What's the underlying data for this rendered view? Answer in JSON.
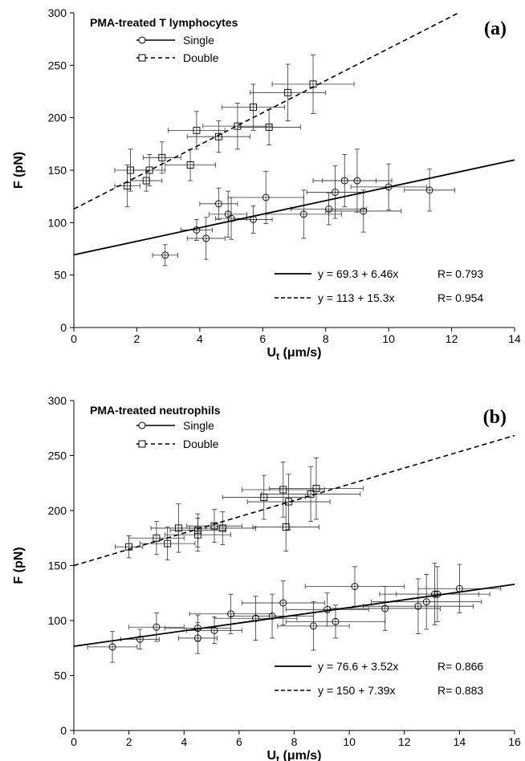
{
  "chart_data": [
    {
      "type": "scatter",
      "panel_label": "(a)",
      "title": "PMA-treated T lymphocytes",
      "xlabel": "U_t (μm/s)",
      "xlabel_main": "U",
      "xlabel_sub": "t",
      "xlabel_unit": " (μm/s)",
      "ylabel": "F (pN)",
      "xlim": [
        0,
        14
      ],
      "ylim": [
        0,
        300
      ],
      "xticks": [
        "0",
        "2",
        "4",
        "6",
        "8",
        "10",
        "12",
        "14"
      ],
      "yticks": [
        "0",
        "50",
        "100",
        "150",
        "200",
        "250",
        "300"
      ],
      "legend_position": "top-left",
      "grid": false,
      "series": [
        {
          "name": "Single",
          "marker": "circle",
          "line_style": "solid",
          "fit": {
            "intercept": 69.3,
            "slope": 6.46,
            "label": "y = 69.3 + 6.46x",
            "r_label": "R= 0.793"
          },
          "points": [
            {
              "x": 2.9,
              "y": 69,
              "xerr": 0.4,
              "yerr": 10
            },
            {
              "x": 3.9,
              "y": 93,
              "xerr": 0.5,
              "yerr": 10
            },
            {
              "x": 4.2,
              "y": 85,
              "xerr": 0.6,
              "yerr": 20
            },
            {
              "x": 4.6,
              "y": 118,
              "xerr": 0.6,
              "yerr": 15
            },
            {
              "x": 4.9,
              "y": 108,
              "xerr": 0.6,
              "yerr": 22
            },
            {
              "x": 5.0,
              "y": 104,
              "xerr": 0.5,
              "yerr": 20
            },
            {
              "x": 5.7,
              "y": 103,
              "xerr": 0.6,
              "yerr": 13
            },
            {
              "x": 6.1,
              "y": 124,
              "xerr": 1.2,
              "yerr": 25
            },
            {
              "x": 7.3,
              "y": 108,
              "xerr": 1.2,
              "yerr": 23
            },
            {
              "x": 8.1,
              "y": 113,
              "xerr": 1.2,
              "yerr": 15
            },
            {
              "x": 8.3,
              "y": 129,
              "xerr": 0.9,
              "yerr": 25
            },
            {
              "x": 8.6,
              "y": 140,
              "xerr": 1.0,
              "yerr": 25
            },
            {
              "x": 9.0,
              "y": 140,
              "xerr": 1.1,
              "yerr": 30
            },
            {
              "x": 9.2,
              "y": 111,
              "xerr": 1.2,
              "yerr": 20
            },
            {
              "x": 10.0,
              "y": 134,
              "xerr": 1.2,
              "yerr": 22
            },
            {
              "x": 11.3,
              "y": 131,
              "xerr": 0.8,
              "yerr": 20
            }
          ]
        },
        {
          "name": "Double",
          "marker": "square",
          "line_style": "dashed",
          "fit": {
            "intercept": 113,
            "slope": 15.3,
            "label": "y = 113 + 15.3x",
            "r_label": "R= 0.954"
          },
          "points": [
            {
              "x": 1.7,
              "y": 135,
              "xerr": 0.4,
              "yerr": 20
            },
            {
              "x": 1.8,
              "y": 150,
              "xerr": 0.5,
              "yerr": 20
            },
            {
              "x": 2.3,
              "y": 140,
              "xerr": 0.5,
              "yerr": 10
            },
            {
              "x": 2.4,
              "y": 150,
              "xerr": 0.5,
              "yerr": 15
            },
            {
              "x": 2.8,
              "y": 162,
              "xerr": 0.6,
              "yerr": 15
            },
            {
              "x": 3.7,
              "y": 155,
              "xerr": 0.8,
              "yerr": 15
            },
            {
              "x": 3.9,
              "y": 188,
              "xerr": 0.9,
              "yerr": 18
            },
            {
              "x": 4.6,
              "y": 182,
              "xerr": 1.0,
              "yerr": 15
            },
            {
              "x": 5.2,
              "y": 192,
              "xerr": 1.1,
              "yerr": 22
            },
            {
              "x": 5.7,
              "y": 210,
              "xerr": 1.0,
              "yerr": 22
            },
            {
              "x": 6.2,
              "y": 191,
              "xerr": 1.0,
              "yerr": 17
            },
            {
              "x": 6.8,
              "y": 224,
              "xerr": 1.2,
              "yerr": 27
            },
            {
              "x": 7.6,
              "y": 232,
              "xerr": 1.3,
              "yerr": 28
            }
          ]
        }
      ]
    },
    {
      "type": "scatter",
      "panel_label": "(b)",
      "title": "PMA-treated neutrophils",
      "xlabel": "U_t (μm/s)",
      "xlabel_main": "U",
      "xlabel_sub": "t",
      "xlabel_unit": " (μm/s)",
      "ylabel": "F (pN)",
      "xlim": [
        0,
        16
      ],
      "ylim": [
        0,
        300
      ],
      "xticks": [
        "0",
        "2",
        "4",
        "6",
        "8",
        "10",
        "12",
        "14",
        "16"
      ],
      "yticks": [
        "0",
        "50",
        "100",
        "150",
        "200",
        "250",
        "300"
      ],
      "legend_position": "top-left",
      "grid": false,
      "series": [
        {
          "name": "Single",
          "marker": "circle",
          "line_style": "solid",
          "fit": {
            "intercept": 76.6,
            "slope": 3.52,
            "label": "y = 76.6 + 3.52x",
            "r_label": "R= 0.866"
          },
          "points": [
            {
              "x": 1.4,
              "y": 76,
              "xerr": 0.9,
              "yerr": 14
            },
            {
              "x": 2.4,
              "y": 83,
              "xerr": 0.7,
              "yerr": 9
            },
            {
              "x": 3.0,
              "y": 94,
              "xerr": 1.0,
              "yerr": 13
            },
            {
              "x": 4.5,
              "y": 84,
              "xerr": 0.7,
              "yerr": 14
            },
            {
              "x": 4.5,
              "y": 93,
              "xerr": 1.2,
              "yerr": 12
            },
            {
              "x": 5.1,
              "y": 91,
              "xerr": 1.0,
              "yerr": 12
            },
            {
              "x": 5.7,
              "y": 106,
              "xerr": 1.5,
              "yerr": 18
            },
            {
              "x": 6.6,
              "y": 102,
              "xerr": 1.5,
              "yerr": 20
            },
            {
              "x": 7.2,
              "y": 104,
              "xerr": 1.5,
              "yerr": 20
            },
            {
              "x": 7.6,
              "y": 116,
              "xerr": 1.5,
              "yerr": 20
            },
            {
              "x": 8.7,
              "y": 95,
              "xerr": 1.3,
              "yerr": 22
            },
            {
              "x": 9.2,
              "y": 110,
              "xerr": 1.5,
              "yerr": 15
            },
            {
              "x": 9.5,
              "y": 99,
              "xerr": 1.8,
              "yerr": 15
            },
            {
              "x": 10.2,
              "y": 131,
              "xerr": 1.8,
              "yerr": 18
            },
            {
              "x": 11.3,
              "y": 111,
              "xerr": 2.0,
              "yerr": 20
            },
            {
              "x": 12.5,
              "y": 113,
              "xerr": 2.0,
              "yerr": 25
            },
            {
              "x": 12.8,
              "y": 117,
              "xerr": 2.0,
              "yerr": 25
            },
            {
              "x": 13.1,
              "y": 124,
              "xerr": 2.0,
              "yerr": 28
            },
            {
              "x": 13.2,
              "y": 124,
              "xerr": 1.5,
              "yerr": 25
            },
            {
              "x": 14.0,
              "y": 129,
              "xerr": 1.5,
              "yerr": 22
            }
          ]
        },
        {
          "name": "Double",
          "marker": "square",
          "line_style": "dashed",
          "fit": {
            "intercept": 150,
            "slope": 7.39,
            "label": "y = 150 + 7.39x",
            "r_label": "R= 0.883"
          },
          "points": [
            {
              "x": 2.0,
              "y": 167,
              "xerr": 0.5,
              "yerr": 10
            },
            {
              "x": 3.0,
              "y": 175,
              "xerr": 1.0,
              "yerr": 15
            },
            {
              "x": 3.4,
              "y": 170,
              "xerr": 1.0,
              "yerr": 15
            },
            {
              "x": 3.8,
              "y": 184,
              "xerr": 1.0,
              "yerr": 22
            },
            {
              "x": 4.5,
              "y": 178,
              "xerr": 1.2,
              "yerr": 15
            },
            {
              "x": 4.5,
              "y": 182,
              "xerr": 1.0,
              "yerr": 15
            },
            {
              "x": 5.1,
              "y": 186,
              "xerr": 1.0,
              "yerr": 15
            },
            {
              "x": 5.4,
              "y": 184,
              "xerr": 1.2,
              "yerr": 15
            },
            {
              "x": 6.9,
              "y": 212,
              "xerr": 1.5,
              "yerr": 20
            },
            {
              "x": 7.6,
              "y": 219,
              "xerr": 1.5,
              "yerr": 25
            },
            {
              "x": 7.8,
              "y": 208,
              "xerr": 1.5,
              "yerr": 25
            },
            {
              "x": 7.7,
              "y": 185,
              "xerr": 1.2,
              "yerr": 22
            },
            {
              "x": 8.6,
              "y": 215,
              "xerr": 1.8,
              "yerr": 25
            },
            {
              "x": 8.8,
              "y": 220,
              "xerr": 1.7,
              "yerr": 28
            }
          ]
        }
      ]
    }
  ]
}
